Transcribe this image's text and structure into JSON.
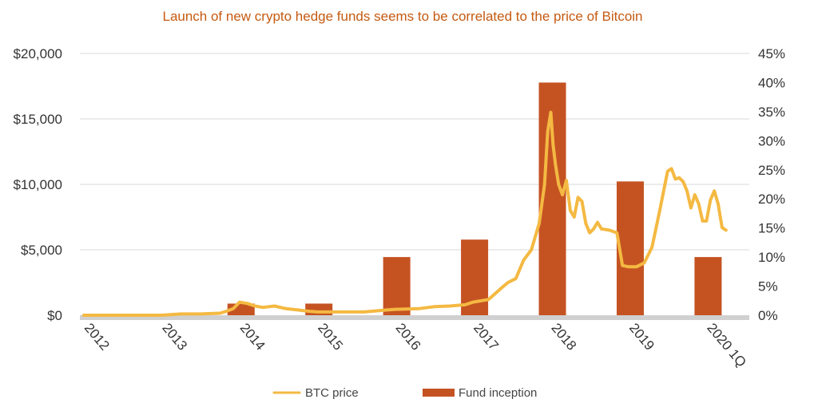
{
  "chart_data": {
    "type": "bar+line",
    "title": "Launch of new crypto  hedge funds seems to be correlated to the price of Bitcoin",
    "colors": {
      "title": "#C55A11",
      "btc_line": "#F4B942",
      "bars": "#C55322",
      "grid": "#D9D9D9",
      "baseline": "#D0D0D0"
    },
    "x_axis": {
      "tick_labels": [
        "2012",
        "2013",
        "2014",
        "2015",
        "2016",
        "2017",
        "2018",
        "2019",
        "2020 1Q"
      ],
      "tick_positions": [
        2012,
        2013,
        2014,
        2015,
        2016,
        2017,
        2018,
        2019,
        2020
      ],
      "range": [
        2011.95,
        2020.55
      ],
      "label_rotation": "diagonal"
    },
    "y_axis_left": {
      "tick_labels": [
        "$0",
        "$5,000",
        "$10,000",
        "$15,000",
        "$20,000"
      ],
      "tick_values": [
        0,
        5000,
        10000,
        15000,
        20000
      ],
      "range": [
        0,
        20000
      ]
    },
    "y_axis_right": {
      "tick_labels": [
        "0%",
        "5%",
        "10%",
        "15%",
        "20%",
        "25%",
        "30%",
        "35%",
        "40%",
        "45%"
      ],
      "tick_values": [
        0,
        5,
        10,
        15,
        20,
        25,
        30,
        35,
        40,
        45
      ],
      "range": [
        0,
        45
      ]
    },
    "grid": "horizontal",
    "legend": {
      "placement": "bottom",
      "items": [
        "BTC price",
        "Fund inception"
      ]
    },
    "series": [
      {
        "name": "Fund inception",
        "type": "bar",
        "axis": "right",
        "x": [
          2014.0,
          2015.0,
          2016.0,
          2017.0,
          2018.0,
          2019.0,
          2020.0
        ],
        "values": [
          2,
          2,
          10,
          13,
          40,
          23,
          10
        ]
      },
      {
        "name": "BTC price",
        "type": "line",
        "axis": "left",
        "x": [
          2012.0,
          2012.5,
          2013.0,
          2013.25,
          2013.5,
          2013.75,
          2013.83,
          2013.92,
          2014.0,
          2014.1,
          2014.2,
          2014.3,
          2014.45,
          2014.6,
          2014.75,
          2014.9,
          2015.0,
          2015.3,
          2015.6,
          2015.9,
          2016.0,
          2016.3,
          2016.5,
          2016.7,
          2016.9,
          2017.0,
          2017.2,
          2017.35,
          2017.45,
          2017.55,
          2017.65,
          2017.75,
          2017.85,
          2017.92,
          2017.96,
          2018.0,
          2018.03,
          2018.06,
          2018.1,
          2018.15,
          2018.2,
          2018.25,
          2018.3,
          2018.35,
          2018.4,
          2018.45,
          2018.5,
          2018.55,
          2018.6,
          2018.65,
          2018.75,
          2018.85,
          2018.92,
          2019.0,
          2019.1,
          2019.2,
          2019.3,
          2019.4,
          2019.45,
          2019.5,
          2019.55,
          2019.6,
          2019.65,
          2019.7,
          2019.75,
          2019.8,
          2019.85,
          2019.9,
          2019.95,
          2020.0,
          2020.05,
          2020.1,
          2020.15,
          2020.2,
          2020.25
        ],
        "values": [
          0,
          0,
          0,
          100,
          100,
          150,
          300,
          500,
          1000,
          900,
          700,
          600,
          700,
          500,
          400,
          300,
          250,
          250,
          250,
          400,
          450,
          500,
          650,
          700,
          800,
          1000,
          1200,
          2000,
          2500,
          2800,
          4200,
          5000,
          7000,
          10000,
          14000,
          15500,
          13000,
          11500,
          10000,
          9200,
          10300,
          8000,
          7500,
          9000,
          8700,
          7000,
          6300,
          6600,
          7100,
          6600,
          6500,
          6300,
          3800,
          3700,
          3700,
          4000,
          5200,
          8000,
          9500,
          11000,
          11200,
          10400,
          10500,
          10200,
          9500,
          8200,
          9200,
          8500,
          7200,
          7200,
          8800,
          9500,
          8500,
          6700,
          6500
        ]
      }
    ]
  }
}
